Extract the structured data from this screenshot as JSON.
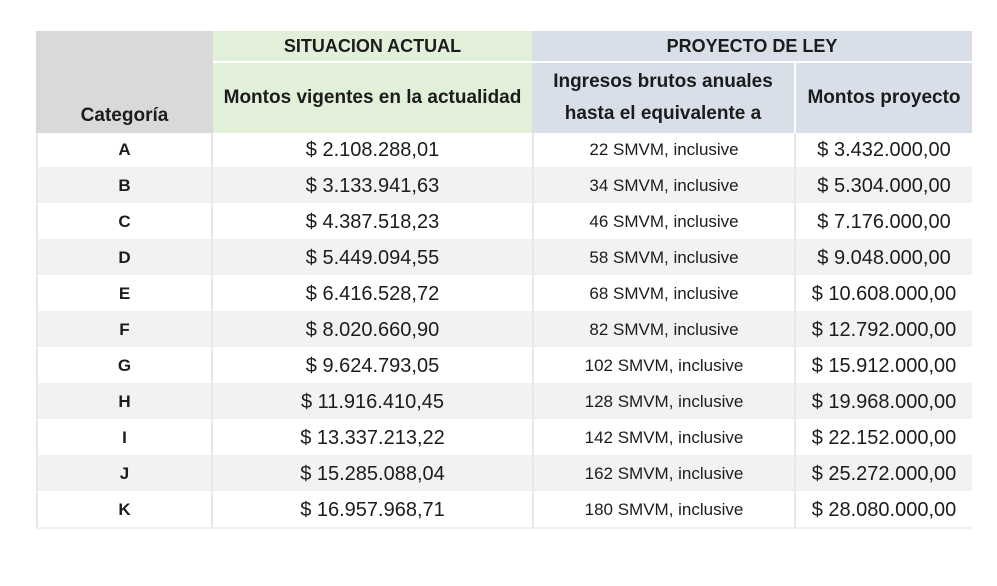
{
  "headers": {
    "categoria": "Categoría",
    "situacion_actual": "SITUACION ACTUAL",
    "proyecto_de_ley": "PROYECTO DE LEY",
    "montos_vigentes": "Montos vigentes en la actualidad",
    "ingresos_brutos": "Ingresos brutos anuales hasta el equivalente a",
    "montos_proyecto": "Montos proyecto"
  },
  "rows": [
    {
      "categoria": "A",
      "actual": "$ 2.108.288,01",
      "ingresos": "22 SMVM, inclusive",
      "proyecto": "$ 3.432.000,00"
    },
    {
      "categoria": "B",
      "actual": "$ 3.133.941,63",
      "ingresos": "34 SMVM, inclusive",
      "proyecto": "$ 5.304.000,00"
    },
    {
      "categoria": "C",
      "actual": "$ 4.387.518,23",
      "ingresos": "46 SMVM, inclusive",
      "proyecto": "$ 7.176.000,00"
    },
    {
      "categoria": "D",
      "actual": "$ 5.449.094,55",
      "ingresos": "58 SMVM, inclusive",
      "proyecto": "$ 9.048.000,00"
    },
    {
      "categoria": "E",
      "actual": "$ 6.416.528,72",
      "ingresos": "68 SMVM, inclusive",
      "proyecto": "$ 10.608.000,00"
    },
    {
      "categoria": "F",
      "actual": "$ 8.020.660,90",
      "ingresos": "82 SMVM, inclusive",
      "proyecto": "$ 12.792.000,00"
    },
    {
      "categoria": "G",
      "actual": "$ 9.624.793,05",
      "ingresos": "102 SMVM, inclusive",
      "proyecto": "$ 15.912.000,00"
    },
    {
      "categoria": "H",
      "actual": "$ 11.916.410,45",
      "ingresos": "128 SMVM, inclusive",
      "proyecto": "$ 19.968.000,00"
    },
    {
      "categoria": "I",
      "actual": "$ 13.337.213,22",
      "ingresos": "142 SMVM, inclusive",
      "proyecto": "$ 22.152.000,00"
    },
    {
      "categoria": "J",
      "actual": "$ 15.285.088,04",
      "ingresos": "162 SMVM, inclusive",
      "proyecto": "$ 25.272.000,00"
    },
    {
      "categoria": "K",
      "actual": "$ 16.957.968,71",
      "ingresos": "180 SMVM, inclusive",
      "proyecto": "$ 28.080.000,00"
    }
  ]
}
